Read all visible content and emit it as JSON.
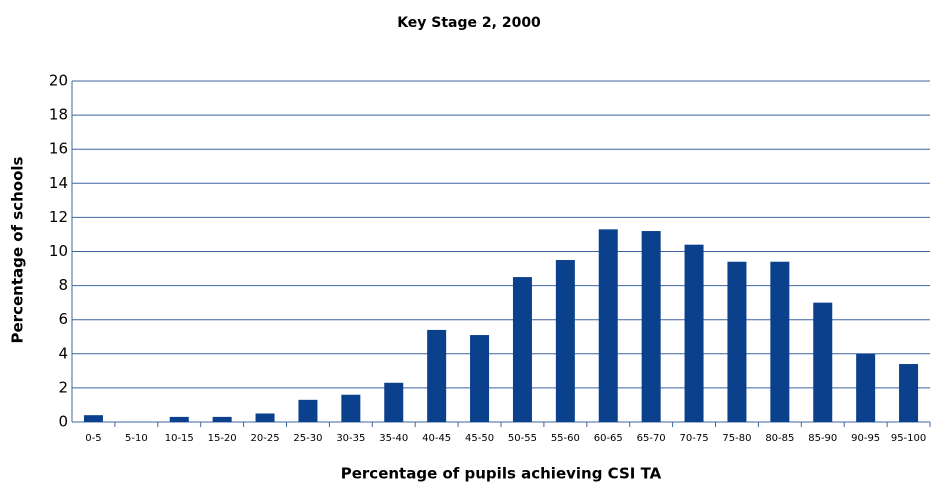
{
  "chart_data": {
    "type": "bar",
    "title": "Key Stage 2, 2000",
    "x_label": "Percentage of pupils achieving CSI TA",
    "y_label": "Percentage of schools",
    "categories": [
      "0-5",
      "5-10",
      "10-15",
      "15-20",
      "20-25",
      "25-30",
      "30-35",
      "35-40",
      "40-45",
      "45-50",
      "50-55",
      "55-60",
      "60-65",
      "65-70",
      "70-75",
      "75-80",
      "80-85",
      "85-90",
      "90-95",
      "95-100"
    ],
    "values": [
      0.4,
      0,
      0.3,
      0.3,
      0.5,
      1.3,
      1.6,
      2.3,
      5.4,
      5.1,
      8.5,
      9.5,
      11.3,
      11.2,
      10.4,
      9.4,
      9.4,
      7.0,
      4.0,
      3.4
    ],
    "color": "#0b418c",
    "ylim": [
      0,
      20
    ],
    "yticks": [
      0,
      2,
      4,
      6,
      8,
      10,
      12,
      14,
      16,
      18,
      20
    ],
    "grid": true
  }
}
